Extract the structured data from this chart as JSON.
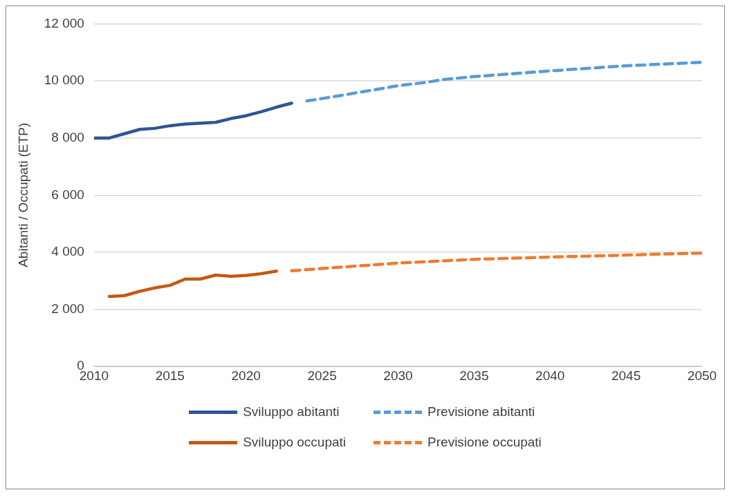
{
  "chart_data": {
    "type": "line",
    "ylabel": "Abitanti / Occupati (ETP)",
    "xlim": [
      2010,
      2050
    ],
    "xticks": [
      2010,
      2015,
      2020,
      2025,
      2030,
      2035,
      2040,
      2045,
      2050
    ],
    "ylim": [
      0,
      12000
    ],
    "yticks": [
      {
        "value": 0,
        "label": "0"
      },
      {
        "value": 2000,
        "label": "2 000"
      },
      {
        "value": 4000,
        "label": "4 000"
      },
      {
        "value": 6000,
        "label": "6 000"
      },
      {
        "value": 8000,
        "label": "8 000"
      },
      {
        "value": 10000,
        "label": "10 000"
      },
      {
        "value": 12000,
        "label": "12 000"
      }
    ],
    "grid": "y",
    "legend": "bottom",
    "marker": "none",
    "series": [
      {
        "name": "Sviluppo abitanti",
        "color": "#2f5597",
        "line_style": "solid",
        "x": [
          2010,
          2011,
          2012,
          2013,
          2014,
          2015,
          2016,
          2017,
          2018,
          2019,
          2020,
          2021,
          2022,
          2023
        ],
        "values": [
          8000,
          8000,
          8150,
          8300,
          8340,
          8430,
          8490,
          8520,
          8550,
          8680,
          8780,
          8920,
          9080,
          9220
        ]
      },
      {
        "name": "Previsione abitanti",
        "color": "#5b9bd5",
        "line_style": "dashed",
        "x": [
          2024,
          2025,
          2027,
          2030,
          2032,
          2033,
          2035,
          2040,
          2045,
          2050
        ],
        "values": [
          9300,
          9380,
          9560,
          9830,
          9960,
          10050,
          10150,
          10350,
          10530,
          10650
        ]
      },
      {
        "name": "Sviluppo occupati",
        "color": "#c55a11",
        "line_style": "solid",
        "x": [
          2011,
          2012,
          2013,
          2014,
          2015,
          2016,
          2017,
          2018,
          2019,
          2020,
          2021,
          2022
        ],
        "values": [
          2450,
          2480,
          2630,
          2750,
          2840,
          3060,
          3060,
          3200,
          3160,
          3190,
          3250,
          3340
        ]
      },
      {
        "name": "Previsione occupati",
        "color": "#ed7d31",
        "line_style": "dashed",
        "x": [
          2023,
          2025,
          2030,
          2035,
          2040,
          2045,
          2050
        ],
        "values": [
          3350,
          3430,
          3620,
          3750,
          3830,
          3900,
          3970
        ]
      }
    ]
  }
}
